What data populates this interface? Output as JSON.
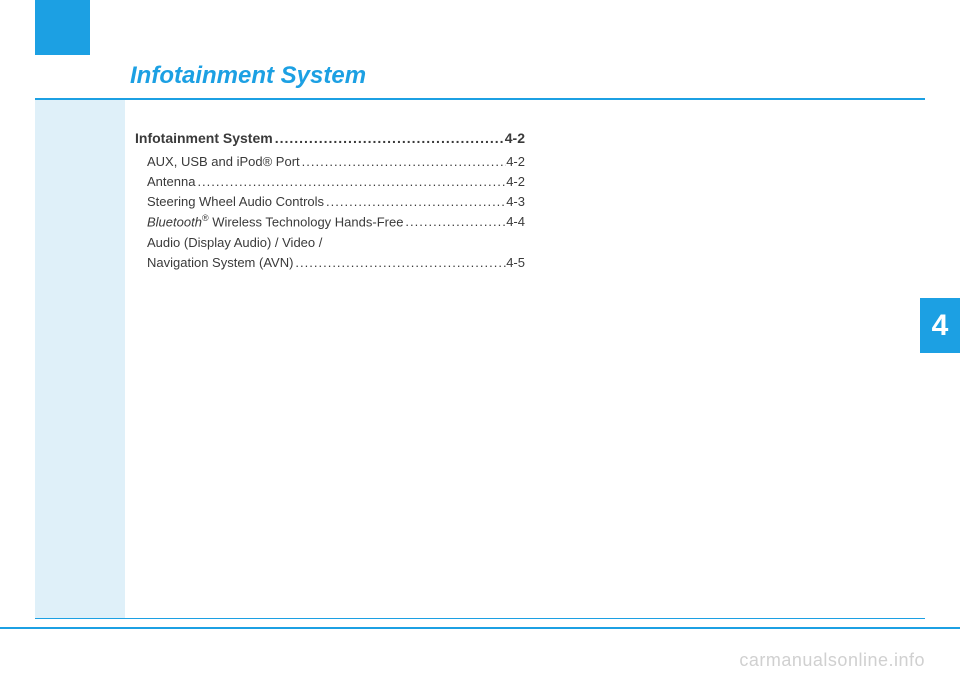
{
  "title": "Infotainment System",
  "chapter_tab": "4",
  "watermark": "carmanualsonline.info",
  "colors": {
    "accent": "#1ca0e3",
    "side_panel": "#dff0f9",
    "text": "#3a3a3a",
    "watermark": "#d0d0d0"
  },
  "toc": {
    "header": {
      "label": "Infotainment System",
      "page": "4-2"
    },
    "items": [
      {
        "label": "AUX, USB and iPod® Port ",
        "page": "4-2"
      },
      {
        "label": "Antenna ",
        "page": "4-2"
      },
      {
        "label": "Steering Wheel Audio Controls",
        "page": "4-3"
      },
      {
        "label_html": "<span class=\"italic\">Bluetooth</span><sup>®</sup> Wireless Technology Hands-Free",
        "page": "4-4"
      },
      {
        "label": "Audio (Display Audio) / Video /",
        "continuation": true
      },
      {
        "label": "Navigation System (AVN)",
        "page": "4-5"
      }
    ]
  }
}
